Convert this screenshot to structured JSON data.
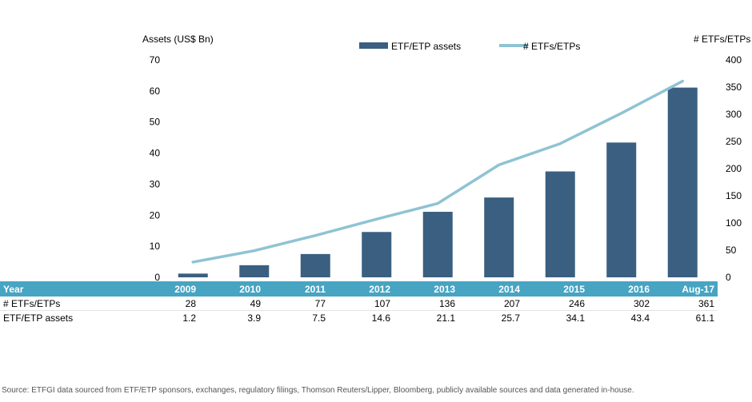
{
  "chart_data": {
    "type": "bar",
    "categories": [
      "2009",
      "2010",
      "2011",
      "2012",
      "2013",
      "2014",
      "2015",
      "2016",
      "Aug-17"
    ],
    "series": [
      {
        "name": "ETF/ETP assets",
        "type": "bar",
        "axis": "left",
        "color": "#3a5f80",
        "values": [
          1.2,
          3.9,
          7.5,
          14.6,
          21.1,
          25.7,
          34.1,
          43.4,
          61.1
        ]
      },
      {
        "name": "# ETFs/ETPs",
        "type": "line",
        "axis": "right",
        "color": "#8fc3d3",
        "values": [
          28,
          49,
          77,
          107,
          136,
          207,
          246,
          302,
          361
        ]
      }
    ],
    "ylabel": "Assets (US$ Bn)",
    "y2label": "# ETFs/ETPs",
    "ylim": [
      0,
      70
    ],
    "y2lim": [
      0,
      400
    ],
    "yticks": [
      "0",
      "10",
      "20",
      "30",
      "40",
      "50",
      "60",
      "70"
    ],
    "y2ticks": [
      "0",
      "50",
      "100",
      "150",
      "200",
      "250",
      "300",
      "350",
      "400"
    ],
    "legend_position": "top-center",
    "grid": false
  },
  "table": {
    "header_label": "Year",
    "rows": [
      {
        "label": "# ETFs/ETPs",
        "values": [
          "28",
          "49",
          "77",
          "107",
          "136",
          "207",
          "246",
          "302",
          "361"
        ]
      },
      {
        "label": "ETF/ETP assets",
        "values": [
          "1.2",
          "3.9",
          "7.5",
          "14.6",
          "21.1",
          "25.7",
          "34.1",
          "43.4",
          "61.1"
        ]
      }
    ]
  },
  "source": "Source: ETFGI data sourced from ETF/ETP sponsors, exchanges,  regulatory filings, Thomson Reuters/Lipper, Bloomberg, publicly available sources and data generated in-house."
}
